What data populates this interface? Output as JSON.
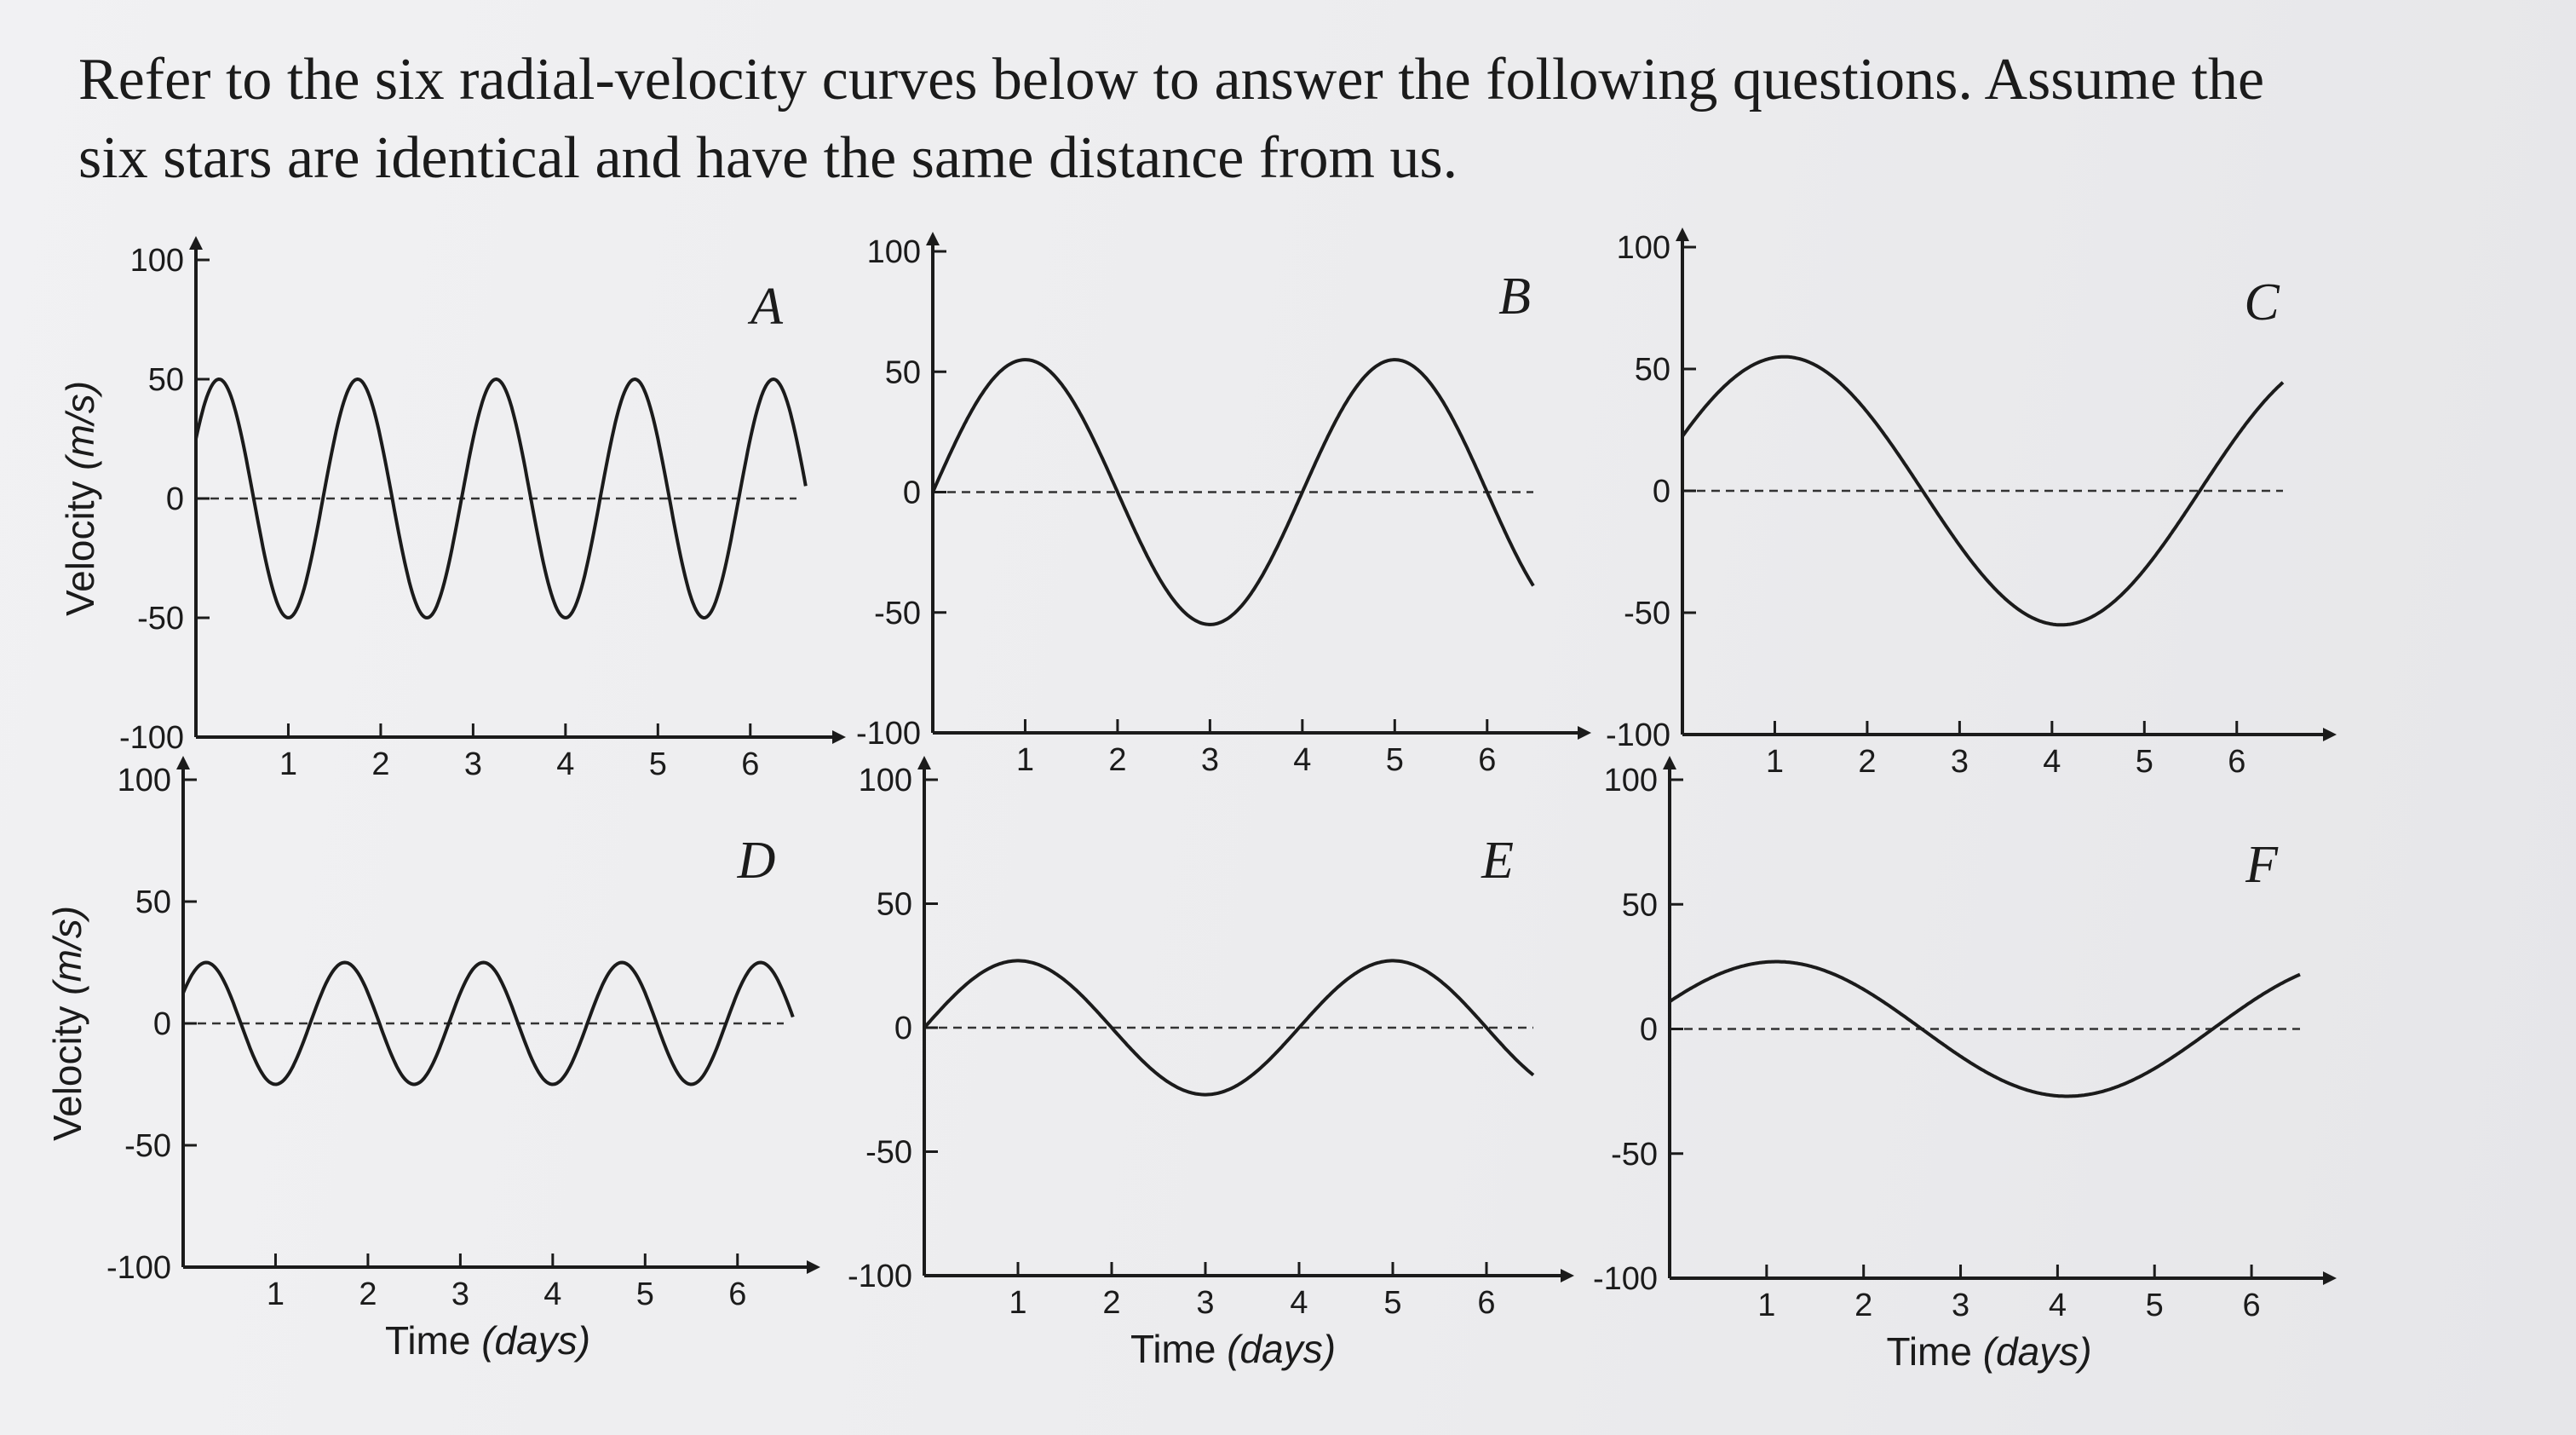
{
  "question": {
    "line1": "Refer to the six radial-velocity curves below to answer the following questions.  Assume the",
    "line2": "six stars are identical and have the same distance from us."
  },
  "chart_data": [
    {
      "type": "line",
      "label": "A",
      "xlim": [
        0,
        6.5
      ],
      "ylim": [
        -100,
        100
      ],
      "grid": "dashed zero line",
      "xticks": [
        "1",
        "2",
        "3",
        "4",
        "5",
        "6"
      ],
      "yticks": [
        "100",
        "50",
        "0",
        "-50",
        "-100"
      ],
      "ylabel": "Velocity (m/s)",
      "xlabel": "",
      "curve": {
        "amplitude": 50,
        "period_days": 1.5,
        "phase_days": -0.125,
        "x_range": [
          0,
          6.6
        ]
      }
    },
    {
      "type": "line",
      "label": "B",
      "xlim": [
        0,
        6.5
      ],
      "ylim": [
        -100,
        100
      ],
      "grid": "dashed zero line",
      "xticks": [
        "1",
        "2",
        "3",
        "4",
        "5",
        "6"
      ],
      "yticks": [
        "100",
        "50",
        "0",
        "-50",
        "-100"
      ],
      "ylabel": "",
      "xlabel": "",
      "curve": {
        "amplitude": 55,
        "period_days": 4.0,
        "phase_days": 0.0,
        "x_range": [
          0,
          6.5
        ]
      }
    },
    {
      "type": "line",
      "label": "C",
      "xlim": [
        0,
        6.5
      ],
      "ylim": [
        -100,
        100
      ],
      "grid": "dashed zero line",
      "xticks": [
        "1",
        "2",
        "3",
        "4",
        "5",
        "6"
      ],
      "yticks": [
        "100",
        "50",
        "0",
        "-50",
        "-100"
      ],
      "ylabel": "",
      "xlabel": "",
      "curve": {
        "amplitude": 55,
        "period_days": 6.0,
        "phase_days": -0.4,
        "x_range": [
          0,
          6.5
        ]
      }
    },
    {
      "type": "line",
      "label": "D",
      "xlim": [
        0,
        6.5
      ],
      "ylim": [
        -100,
        100
      ],
      "grid": "dashed zero line",
      "xticks": [
        "1",
        "2",
        "3",
        "4",
        "5",
        "6"
      ],
      "yticks": [
        "100",
        "50",
        "0",
        "-50",
        "-100"
      ],
      "ylabel": "Velocity (m/s)",
      "xlabel": "Time (days)",
      "curve": {
        "amplitude": 25,
        "period_days": 1.5,
        "phase_days": -0.125,
        "x_range": [
          0,
          6.6
        ]
      }
    },
    {
      "type": "line",
      "label": "E",
      "xlim": [
        0,
        6.5
      ],
      "ylim": [
        -100,
        100
      ],
      "grid": "dashed zero line",
      "xticks": [
        "1",
        "2",
        "3",
        "4",
        "5",
        "6"
      ],
      "yticks": [
        "100",
        "50",
        "0",
        "-50",
        "-100"
      ],
      "ylabel": "",
      "xlabel": "Time (days)",
      "curve": {
        "amplitude": 27,
        "period_days": 4.0,
        "phase_days": 0.0,
        "x_range": [
          0,
          6.5
        ]
      }
    },
    {
      "type": "line",
      "label": "F",
      "xlim": [
        0,
        6.5
      ],
      "ylim": [
        -100,
        100
      ],
      "grid": "dashed zero line",
      "xticks": [
        "1",
        "2",
        "3",
        "4",
        "5",
        "6"
      ],
      "yticks": [
        "100",
        "50",
        "0",
        "-50",
        "-100"
      ],
      "ylabel": "",
      "xlabel": "Time (days)",
      "curve": {
        "amplitude": 27,
        "period_days": 6.0,
        "phase_days": -0.4,
        "x_range": [
          0,
          6.5
        ]
      }
    }
  ]
}
